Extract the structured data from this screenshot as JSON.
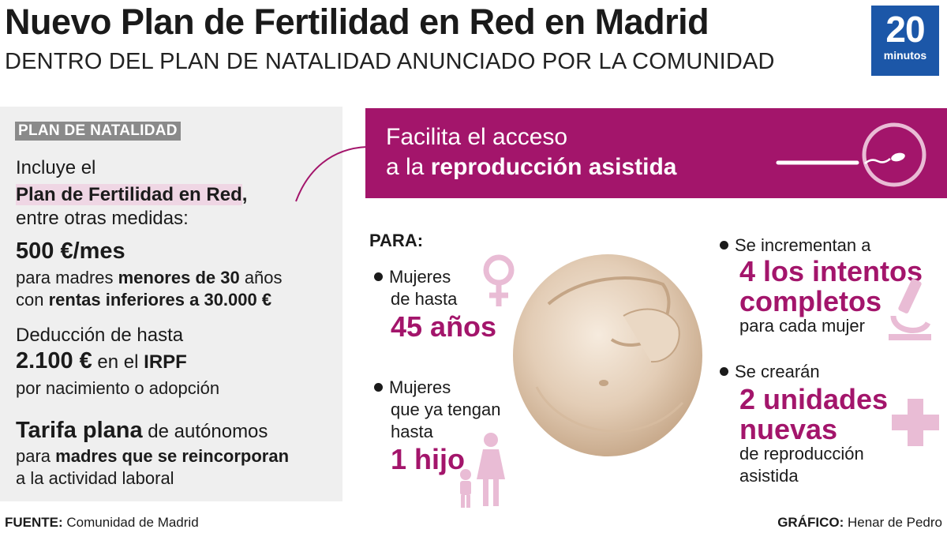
{
  "header": {
    "title": "Nuevo Plan de Fertilidad en Red en Madrid",
    "subtitle": "DENTRO DEL PLAN DE NATALIDAD ANUNCIADO POR LA COMUNIDAD",
    "logo_number": "20",
    "logo_word": "minutos"
  },
  "left": {
    "tag": "PLAN DE NATALIDAD",
    "intro_1": "Incluye el",
    "intro_highlight": "Plan de Fertilidad en Red",
    "intro_comma": ",",
    "intro_3": "entre otras medidas:",
    "m1_big": "500 €/mes",
    "m1_l2_a": "para madres ",
    "m1_l2_b": "menores de 30",
    "m1_l2_c": " años",
    "m1_l3_a": "con ",
    "m1_l3_b": "rentas inferiores a 30.000 €",
    "m2_l1": "Deducción de hasta",
    "m2_big": "2.100 €",
    "m2_l2_mid": " en el ",
    "m2_l2_irpf": "IRPF",
    "m2_l3": "por nacimiento o adopción",
    "m3_big": "Tarifa plana",
    "m3_l1_rest": " de autónomos",
    "m3_l2_a": "para ",
    "m3_l2_b": "madres que se reincorporan",
    "m3_l3": "a la actividad laboral"
  },
  "banner": {
    "line1": "Facilita el acceso",
    "line2_a": "a la ",
    "line2_b": "reproducción asistida"
  },
  "para": {
    "label": "PARA:",
    "a_l1": "Mujeres",
    "a_l2": "de hasta",
    "a_big": "45 años",
    "b_l1": "Mujeres",
    "b_l2": "que ya tengan",
    "b_l3": "hasta",
    "b_big": "1 hijo"
  },
  "right": {
    "c_l1": "Se incrementan a",
    "c_big1": "4 los intentos",
    "c_big2": "completos",
    "c_l2": "para cada mujer",
    "d_l1": "Se crearán",
    "d_big1": "2 unidades",
    "d_big2": "nuevas",
    "d_l2": "de reproducción",
    "d_l3": "asistida"
  },
  "footer": {
    "source_label": "FUENTE:",
    "source_text": " Comunidad de Madrid",
    "credit_label": "GRÁFICO:",
    "credit_text": " Henar de Pedro"
  },
  "colors": {
    "accent": "#a3156b",
    "accent_light": "#efd6e4",
    "panel": "#efefef",
    "logo": "#1c57a8",
    "tag": "#8a8a8a"
  },
  "icons": [
    "female-symbol-icon",
    "mother-child-icon",
    "microscope-icon",
    "plus-icon",
    "sperm-egg-icon"
  ]
}
